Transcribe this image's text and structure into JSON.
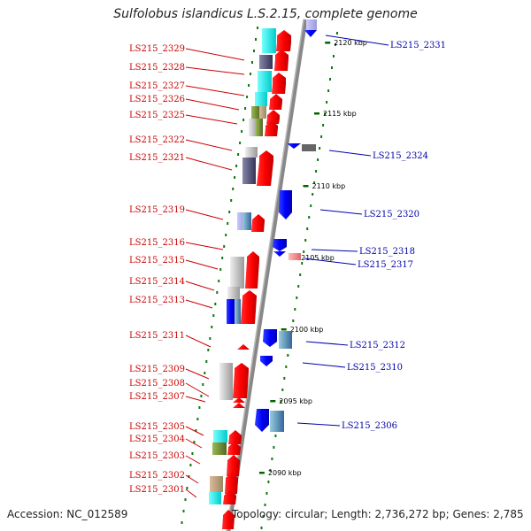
{
  "title": "Sulfolobus islandicus L.S.2.15, complete genome",
  "footer": {
    "accession": "Accession: NC_012589",
    "topology": "Topology: circular; Length: 2,736,272 bp; Genes: 2,785"
  },
  "scale_labels": [
    "2120 kbp",
    "2115 kbp",
    "2110 kbp",
    "2105 kbp",
    "2100 kbp",
    "2095 kbp",
    "2090 kbp"
  ],
  "genes_left": [
    "LS215_2329",
    "LS215_2328",
    "LS215_2327",
    "LS215_2326",
    "LS215_2325",
    "LS215_2322",
    "LS215_2321",
    "LS215_2319",
    "LS215_2316",
    "LS215_2315",
    "LS215_2314",
    "LS215_2313",
    "LS215_2311",
    "LS215_2309",
    "LS215_2308",
    "LS215_2307",
    "LS215_2305",
    "LS215_2304",
    "LS215_2303",
    "LS215_2302",
    "LS215_2301"
  ],
  "genes_right": [
    "LS215_2331",
    "LS215_2324",
    "LS215_2320",
    "LS215_2318",
    "LS215_2317",
    "LS215_2312",
    "LS215_2310",
    "LS215_2306"
  ],
  "colors": {
    "forward_strand": "#ff0000",
    "reverse_strand": "#0000ff",
    "backbone": "#888888",
    "tick": "#006600",
    "left_label": "#cc0000",
    "right_label": "#0000aa"
  }
}
